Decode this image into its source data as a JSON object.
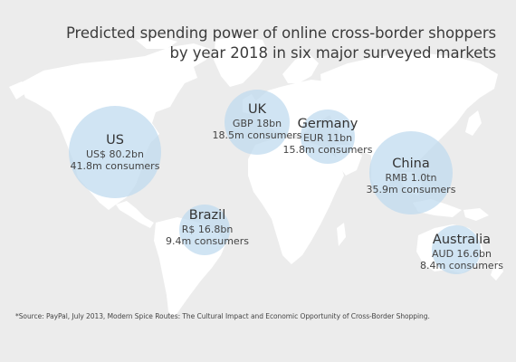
{
  "title": {
    "line1": "Predicted spending power of online cross-border shoppers",
    "line2": "by year 2018 in six major surveyed markets"
  },
  "colors": {
    "background": "#ececec",
    "land": "#ffffff",
    "bubble": "#bedaee",
    "text": "#3a3a3a"
  },
  "markets": [
    {
      "id": "us",
      "name": "US",
      "spend": "US$ 80.2bn",
      "consumers": "41.8m consumers"
    },
    {
      "id": "uk",
      "name": "UK",
      "spend": "GBP 18bn",
      "consumers": "18.5m consumers"
    },
    {
      "id": "germany",
      "name": "Germany",
      "spend": "EUR 11bn",
      "consumers": "15.8m consumers"
    },
    {
      "id": "china",
      "name": "China",
      "spend": "RMB 1.0tn",
      "consumers": "35.9m consumers"
    },
    {
      "id": "brazil",
      "name": "Brazil",
      "spend": "R$ 16.8bn",
      "consumers": "9.4m consumers"
    },
    {
      "id": "australia",
      "name": "Australia",
      "spend": "AUD 16.6bn",
      "consumers": "8.4m consumers"
    }
  ],
  "footnote": "*Source: PayPal, July 2013, Modern Spice Routes: The Cultural Impact and Economic Opportunity of Cross-Border Shopping."
}
